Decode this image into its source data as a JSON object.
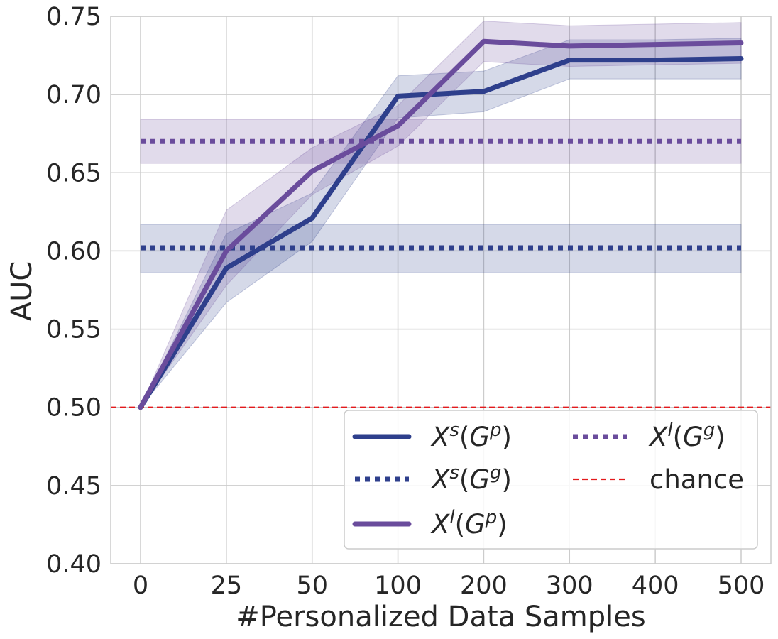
{
  "chart_data": {
    "type": "line",
    "xlabel": "#Personalized Data Samples",
    "ylabel": "AUC",
    "categories": [
      "0",
      "25",
      "50",
      "100",
      "200",
      "300",
      "400",
      "500"
    ],
    "ylim": [
      0.4,
      0.75
    ],
    "yticks": [
      "0.40",
      "0.45",
      "0.50",
      "0.55",
      "0.60",
      "0.65",
      "0.70",
      "0.75"
    ],
    "grid": true,
    "legend_position": "lower-right",
    "series": [
      {
        "name": "X^s(G^p)",
        "style": "solid",
        "color": "#2e3f8c",
        "values": [
          0.5,
          0.589,
          0.621,
          0.699,
          0.702,
          0.722,
          0.722,
          0.723
        ],
        "lower": [
          0.5,
          0.567,
          0.606,
          0.685,
          0.689,
          0.71,
          0.71,
          0.71
        ],
        "upper": [
          0.5,
          0.611,
          0.637,
          0.712,
          0.715,
          0.735,
          0.735,
          0.736
        ]
      },
      {
        "name": "X^s(G^g)",
        "style": "dotted",
        "color": "#2e3f8c",
        "values": [
          0.602,
          0.602,
          0.602,
          0.602,
          0.602,
          0.602,
          0.602,
          0.602
        ],
        "lower": [
          0.586,
          0.586,
          0.586,
          0.586,
          0.586,
          0.586,
          0.586,
          0.586
        ],
        "upper": [
          0.617,
          0.617,
          0.617,
          0.617,
          0.617,
          0.617,
          0.617,
          0.617
        ]
      },
      {
        "name": "X^l(G^p)",
        "style": "solid",
        "color": "#6a4c9c",
        "values": [
          0.5,
          0.6,
          0.651,
          0.68,
          0.734,
          0.731,
          0.732,
          0.733
        ],
        "lower": [
          0.5,
          0.578,
          0.636,
          0.667,
          0.721,
          0.718,
          0.719,
          0.72
        ],
        "upper": [
          0.5,
          0.626,
          0.666,
          0.693,
          0.747,
          0.744,
          0.745,
          0.746
        ]
      },
      {
        "name": "X^l(G^g)",
        "style": "dotted",
        "color": "#6a4c9c",
        "values": [
          0.67,
          0.67,
          0.67,
          0.67,
          0.67,
          0.67,
          0.67,
          0.67
        ],
        "lower": [
          0.656,
          0.656,
          0.656,
          0.656,
          0.656,
          0.656,
          0.656,
          0.656
        ],
        "upper": [
          0.684,
          0.684,
          0.684,
          0.684,
          0.684,
          0.684,
          0.684,
          0.684
        ]
      }
    ],
    "reference_lines": [
      {
        "name": "chance",
        "y": 0.5,
        "style": "dashed",
        "color": "#e31a1c"
      }
    ],
    "legend": [
      {
        "base": "X",
        "sup1": "s",
        "g": "G",
        "sup2": "p",
        "style": "solid",
        "color": "#2e3f8c"
      },
      {
        "base": "X",
        "sup1": "s",
        "g": "G",
        "sup2": "g",
        "style": "dotted",
        "color": "#2e3f8c"
      },
      {
        "base": "X",
        "sup1": "l",
        "g": "G",
        "sup2": "p",
        "style": "solid",
        "color": "#6a4c9c"
      },
      {
        "base": "X",
        "sup1": "l",
        "g": "G",
        "sup2": "g",
        "style": "dotted",
        "color": "#6a4c9c"
      },
      {
        "text": "chance",
        "style": "dashed",
        "color": "#e31a1c"
      }
    ]
  }
}
